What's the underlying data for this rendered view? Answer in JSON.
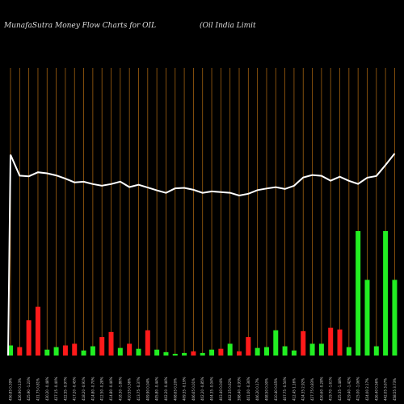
{
  "header": {
    "title": "MunafaSutra  Money Flow  Charts for OIL",
    "company": "(Oil India  Limit"
  },
  "colors": {
    "background": "#000000",
    "grid_line": "#a06010",
    "up_bar": "#22ee22",
    "down_bar": "#ff1a1a",
    "price_line": "#ffffff"
  },
  "chart_data": {
    "type": "bar",
    "title": "MunafaSutra  Money Flow  Charts for OIL",
    "subtitle": "(Oil India  Limit",
    "grid": "vertical",
    "categories": [
      "456.85 0.39%",
      "426.90 0.13%",
      "425.90 -1.23%",
      "431.75 0.81%",
      "430.20 -0.48%",
      "427.15 -0.40%",
      "422.55 -0.97%",
      "417.20 -0.45%",
      "418.20 -0.91%",
      "414.80 -0.70%",
      "412.50 -0.28%",
      "414.80 -0.46%",
      "418.30 -1.80%",
      "410.55 0.36%",
      "413.75 -0.37%",
      "409.90 0.04%",
      "405.80 -0.44%",
      "402.20 -0.46%",
      "408.65 0.20%",
      "409.35 -0.19%",
      "406.65 0.01%",
      "402.20 -0.85%",
      "404.35 -0.04%",
      "403.40 0.04%",
      "402.35 0.62%",
      "398.40 -0.93%",
      "401.00 -0.36%",
      "406.20 0.17%",
      "408.50 0.00%",
      "410.40 0.65%",
      "407.75 -0.50%",
      "412.45 1.16%",
      "424.35 2.92%",
      "427.75 0.83%",
      "426.60 -0.28%",
      "419.70 -1.61%",
      "425.35 -1.48%",
      "419.40 -1.42%",
      "415.00 -1.06%",
      "424.00 2.17%",
      "426.40 0.56%",
      "442.05 3.67%",
      "458.55 3.73%"
    ],
    "flow": [
      12,
      10,
      42,
      58,
      7,
      10,
      12,
      14,
      6,
      11,
      22,
      28,
      9,
      14,
      8,
      30,
      7,
      4,
      2,
      3,
      5,
      3,
      7,
      8,
      14,
      5,
      22,
      9,
      10,
      30,
      11,
      6,
      29,
      14,
      14,
      33,
      31,
      10,
      148,
      90,
      11,
      148,
      90
    ],
    "flow_direction": [
      "up",
      "down",
      "down",
      "down",
      "up",
      "up",
      "down",
      "down",
      "up",
      "up",
      "down",
      "down",
      "up",
      "down",
      "up",
      "down",
      "up",
      "up",
      "up",
      "up",
      "down",
      "up",
      "up",
      "down",
      "up",
      "down",
      "down",
      "up",
      "up",
      "up",
      "up",
      "up",
      "down",
      "up",
      "up",
      "down",
      "down",
      "up",
      "up",
      "up",
      "up",
      "up",
      "up"
    ],
    "price": [
      456.85,
      426.9,
      425.9,
      431.75,
      430.2,
      427.15,
      422.55,
      417.2,
      418.2,
      414.8,
      412.5,
      414.8,
      418.3,
      410.55,
      413.75,
      409.9,
      405.8,
      402.2,
      408.65,
      409.35,
      406.65,
      402.2,
      404.35,
      403.4,
      402.35,
      398.4,
      401.0,
      406.2,
      408.5,
      410.4,
      407.75,
      412.45,
      424.35,
      427.75,
      426.6,
      419.7,
      425.35,
      419.4,
      415.0,
      424.0,
      426.4,
      442.05,
      458.55
    ]
  }
}
